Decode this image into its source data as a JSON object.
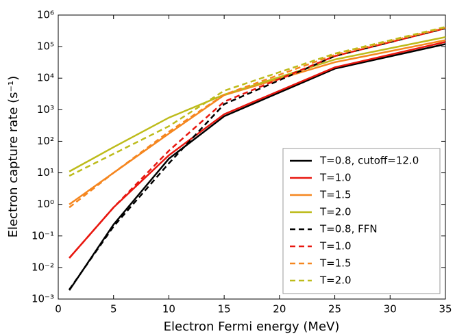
{
  "chart_data": {
    "type": "line",
    "xlabel": "Electron Fermi energy (MeV)",
    "ylabel": "Electron capture rate (s⁻¹)",
    "x": [
      1,
      5,
      10,
      15,
      25,
      35
    ],
    "xlim": [
      0,
      35
    ],
    "xticks": [
      0,
      5,
      10,
      15,
      20,
      25,
      30,
      35
    ],
    "ylog": true,
    "ylim": [
      0.001,
      1000000
    ],
    "yticks": [
      {
        "value": 0.001,
        "label": "10⁻³"
      },
      {
        "value": 0.01,
        "label": "10⁻²"
      },
      {
        "value": 0.1,
        "label": "10⁻¹"
      },
      {
        "value": 1,
        "label": "10⁰"
      },
      {
        "value": 10,
        "label": "10¹"
      },
      {
        "value": 100,
        "label": "10²"
      },
      {
        "value": 1000,
        "label": "10³"
      },
      {
        "value": 10000,
        "label": "10⁴"
      },
      {
        "value": 100000,
        "label": "10⁵"
      },
      {
        "value": 1000000,
        "label": "10⁶"
      }
    ],
    "legend": "lower right",
    "series": [
      {
        "name": "T=0.8, cutoff=12.0",
        "color": "#000000",
        "dashed": false,
        "values": [
          0.0019,
          0.23,
          28,
          620,
          20000,
          120000
        ]
      },
      {
        "name": "T=1.0",
        "color": "#e8170f",
        "dashed": false,
        "values": [
          0.02,
          0.8,
          36,
          720,
          22000,
          140000
        ]
      },
      {
        "name": "T=1.5",
        "color": "#f5861f",
        "dashed": false,
        "values": [
          1.0,
          10,
          175,
          2900,
          32000,
          160000
        ]
      },
      {
        "name": "T=2.0",
        "color": "#bdbb1a",
        "dashed": false,
        "values": [
          11,
          65,
          560,
          3000,
          39000,
          200000
        ]
      },
      {
        "name": "T=0.8, FFN",
        "color": "#000000",
        "dashed": true,
        "values": [
          0.002,
          0.2,
          20,
          1500,
          50000,
          380000
        ]
      },
      {
        "name": "T=1.0",
        "color": "#e8170f",
        "dashed": true,
        "values": [
          0.02,
          0.8,
          50,
          1800,
          50000,
          380000
        ]
      },
      {
        "name": "T=1.5",
        "color": "#f5861f",
        "dashed": true,
        "values": [
          0.8,
          10,
          200,
          3000,
          55000,
          400000
        ]
      },
      {
        "name": "T=2.0",
        "color": "#bdbb1a",
        "dashed": true,
        "values": [
          8,
          40,
          300,
          4000,
          60000,
          420000
        ]
      }
    ]
  }
}
